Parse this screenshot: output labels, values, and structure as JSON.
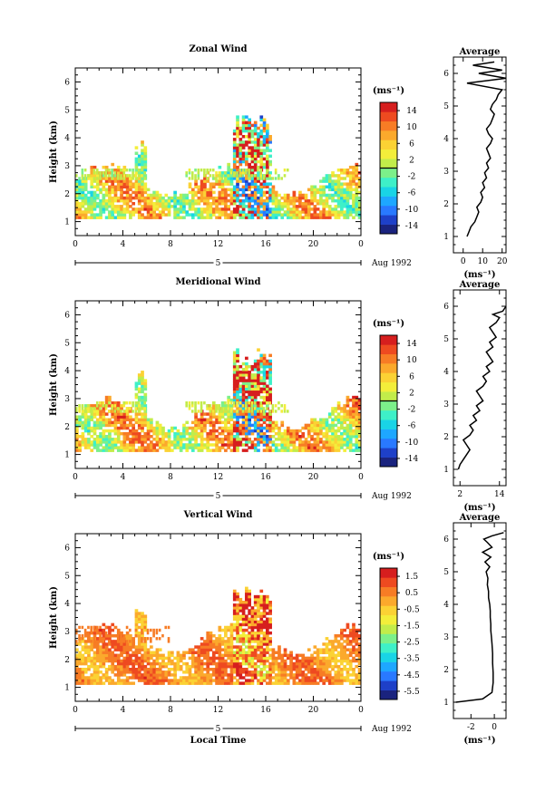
{
  "chart_data": [
    {
      "type": "heatmap",
      "title": "Zonal Wind",
      "ylabel": "Height (km)",
      "xlabel": "",
      "x_ticks": [
        "0",
        "4",
        "8",
        "12",
        "16",
        "20",
        "0"
      ],
      "y_ticks": [
        "1",
        "2",
        "3",
        "4",
        "5",
        "6"
      ],
      "xlim": [
        0,
        24
      ],
      "ylim": [
        0.5,
        6.5
      ],
      "date_bar": {
        "day": "5",
        "month_year": "Aug 1992"
      },
      "colorbar": {
        "unit": "(ms⁻¹)",
        "ticks": [
          "14",
          "10",
          "6",
          "2",
          "-2",
          "-6",
          "-10",
          "-14"
        ],
        "range": [
          -16,
          16
        ]
      },
      "scene": {
        "base": 1.1,
        "cap": 2.3,
        "tower": 4.8,
        "scatter_top": 2.9,
        "mean": 4,
        "spread": 6,
        "noise": 8,
        "cyan_layer": true
      },
      "profile": {
        "title": "Average",
        "xlabel": "(ms⁻¹)",
        "x_ticks": [
          "0",
          "10",
          "20"
        ],
        "y_ticks": [
          "1",
          "2",
          "3",
          "4",
          "5",
          "6"
        ],
        "xlim": [
          -5,
          22
        ],
        "ylim": [
          0.5,
          6.5
        ],
        "x": [
          2,
          3,
          4,
          6,
          7,
          8,
          7,
          9,
          10,
          9,
          11,
          10,
          12,
          11,
          13,
          12,
          14,
          13,
          12,
          14,
          15,
          13,
          12,
          14,
          15,
          16,
          14,
          15,
          17,
          18,
          20,
          2,
          22,
          8,
          20,
          5,
          16
        ],
        "y": [
          1.0,
          1.15,
          1.3,
          1.45,
          1.6,
          1.75,
          1.9,
          2.05,
          2.2,
          2.35,
          2.5,
          2.65,
          2.8,
          2.95,
          3.1,
          3.25,
          3.4,
          3.55,
          3.7,
          3.85,
          4.0,
          4.15,
          4.3,
          4.45,
          4.6,
          4.75,
          4.9,
          5.05,
          5.2,
          5.35,
          5.5,
          5.7,
          5.85,
          6.0,
          6.1,
          6.25,
          6.35
        ]
      }
    },
    {
      "type": "heatmap",
      "title": "Meridional Wind",
      "ylabel": "Height (km)",
      "xlabel": "",
      "x_ticks": [
        "0",
        "4",
        "8",
        "12",
        "16",
        "20",
        "0"
      ],
      "y_ticks": [
        "1",
        "2",
        "3",
        "4",
        "5",
        "6"
      ],
      "xlim": [
        0,
        24
      ],
      "ylim": [
        0.5,
        6.5
      ],
      "date_bar": {
        "day": "5",
        "month_year": "Aug 1992"
      },
      "colorbar": {
        "unit": "(ms⁻¹)",
        "ticks": [
          "14",
          "10",
          "6",
          "2",
          "-2",
          "-6",
          "-10",
          "-14"
        ],
        "range": [
          -16,
          16
        ]
      },
      "scene": {
        "base": 1.1,
        "cap": 2.3,
        "tower": 4.9,
        "scatter_top": 2.9,
        "mean": 5,
        "spread": 6,
        "noise": 8,
        "cyan_layer": true
      },
      "profile": {
        "title": "Average",
        "xlabel": "(ms⁻¹)",
        "x_ticks": [
          "2",
          "14"
        ],
        "y_ticks": [
          "1",
          "2",
          "3",
          "4",
          "5",
          "6"
        ],
        "xlim": [
          0,
          16
        ],
        "ylim": [
          0.5,
          6.5
        ],
        "x": [
          1.5,
          2,
          3,
          4,
          5,
          4,
          3,
          5,
          6,
          5,
          7,
          6,
          8,
          7,
          9,
          8,
          7,
          9,
          10,
          9,
          11,
          10,
          12,
          11,
          10,
          12,
          11,
          13,
          12,
          11,
          13,
          14,
          12,
          15,
          16
        ],
        "y": [
          1.0,
          1.15,
          1.3,
          1.45,
          1.6,
          1.75,
          1.9,
          2.05,
          2.2,
          2.35,
          2.5,
          2.65,
          2.8,
          2.95,
          3.1,
          3.25,
          3.4,
          3.55,
          3.7,
          3.85,
          4.0,
          4.15,
          4.3,
          4.45,
          4.6,
          4.75,
          4.9,
          5.05,
          5.2,
          5.35,
          5.5,
          5.65,
          5.75,
          5.85,
          6.0
        ]
      }
    },
    {
      "type": "heatmap",
      "title": "Vertical Wind",
      "ylabel": "Height (km)",
      "xlabel": "Local Time",
      "x_ticks": [
        "0",
        "4",
        "8",
        "12",
        "16",
        "20",
        "0"
      ],
      "y_ticks": [
        "1",
        "2",
        "3",
        "4",
        "5",
        "6"
      ],
      "xlim": [
        0,
        24
      ],
      "ylim": [
        0.5,
        6.5
      ],
      "date_bar": {
        "day": "5",
        "month_year": "Aug 1992"
      },
      "colorbar": {
        "unit": "(ms⁻¹)",
        "ticks": [
          "1.5",
          "0.5",
          "-0.5",
          "-1.5",
          "-2.5",
          "-3.5",
          "-4.5",
          "-5.5"
        ],
        "range": [
          -6.0,
          2.0
        ]
      },
      "scene": {
        "base": 1.1,
        "cap": 2.5,
        "tower": 4.6,
        "scatter_top": 3.2,
        "mean": 0.3,
        "spread": 0.7,
        "noise": 0.9,
        "cyan_layer": false
      },
      "profile": {
        "title": "Average",
        "xlabel": "(ms⁻¹)",
        "x_ticks": [
          "-2",
          "0"
        ],
        "y_ticks": [
          "1",
          "2",
          "3",
          "4",
          "5",
          "6"
        ],
        "xlim": [
          -3.5,
          1.0
        ],
        "ylim": [
          0.5,
          6.5
        ],
        "x": [
          -3.3,
          -1.0,
          -0.2,
          -0.1,
          -0.1,
          -0.15,
          -0.15,
          -0.2,
          -0.25,
          -0.3,
          -0.3,
          -0.35,
          -0.35,
          -0.4,
          -0.5,
          -0.5,
          -0.6,
          -0.55,
          -0.7,
          -0.4,
          -0.8,
          -0.3,
          -1.0,
          -0.2,
          -0.6,
          -0.9,
          -0.2,
          0.8
        ],
        "y": [
          1.0,
          1.1,
          1.3,
          1.6,
          1.9,
          2.2,
          2.5,
          2.8,
          3.0,
          3.2,
          3.4,
          3.6,
          3.8,
          4.0,
          4.2,
          4.4,
          4.6,
          4.8,
          5.0,
          5.15,
          5.3,
          5.45,
          5.6,
          5.75,
          5.9,
          6.0,
          6.1,
          6.2
        ]
      }
    }
  ]
}
